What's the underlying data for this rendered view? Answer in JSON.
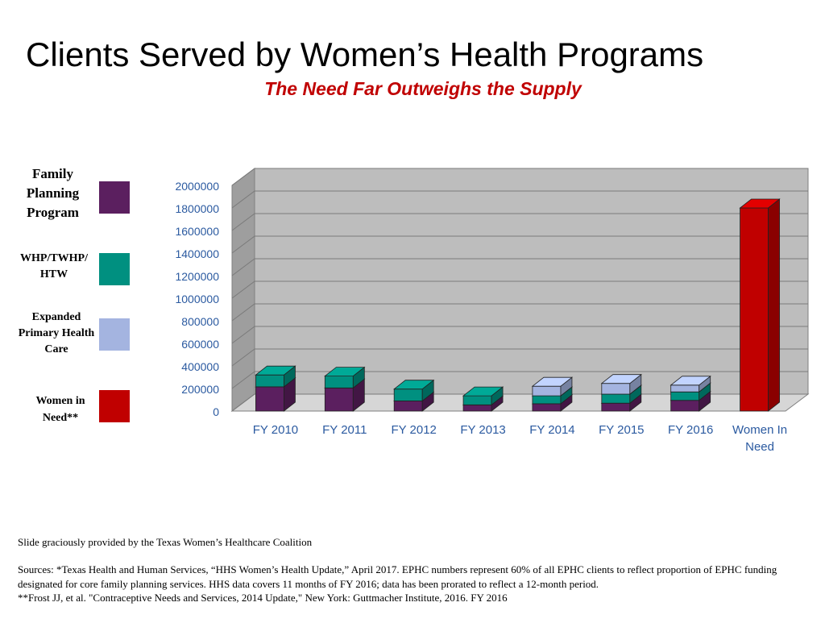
{
  "slide": {
    "title": "Clients Served by Women’s Health Programs",
    "subtitle": "The Need Far Outweighs the Supply"
  },
  "legend": [
    {
      "label": "Family Planning Program",
      "color": "#5b1f5f"
    },
    {
      "label": "WHP/TWHP/HTW",
      "color": "#009080"
    },
    {
      "label": "Expanded Primary Health Care",
      "color": "#a4b4e0"
    },
    {
      "label": "Women in Need**",
      "color": "#c00000"
    }
  ],
  "chart_data": {
    "type": "bar",
    "stacked": true,
    "title": "Clients Served by Women’s Health Programs",
    "subtitle": "The Need Far Outweighs the Supply",
    "categories": [
      "FY 2010",
      "FY 2011",
      "FY 2012",
      "FY 2013",
      "FY 2014",
      "FY 2015",
      "FY 2016",
      "Women In Need"
    ],
    "series": [
      {
        "name": "Family Planning Program",
        "color": "#5b1f5f",
        "values": [
          215000,
          205000,
          90000,
          55000,
          65000,
          70000,
          95000,
          0
        ]
      },
      {
        "name": "WHP/TWHP/HTW",
        "color": "#009080",
        "values": [
          105000,
          105000,
          105000,
          80000,
          70000,
          80000,
          75000,
          0
        ]
      },
      {
        "name": "Expanded Primary Health Care",
        "color": "#a4b4e0",
        "values": [
          0,
          0,
          0,
          0,
          85000,
          95000,
          60000,
          0
        ]
      },
      {
        "name": "Women in Need**",
        "color": "#c00000",
        "values": [
          0,
          0,
          0,
          0,
          0,
          0,
          0,
          1800000
        ]
      }
    ],
    "y_ticks": [
      "0",
      "200000",
      "400000",
      "600000",
      "800000",
      "1000000",
      "1200000",
      "1400000",
      "1600000",
      "1800000",
      "2000000"
    ],
    "ylim": [
      0,
      2000000
    ],
    "grid": true,
    "legend_position": "left"
  },
  "footer": {
    "credit": "Slide graciously provided by the Texas Women’s Healthcare Coalition",
    "sources_line1": "Sources: *Texas Health and Human Services, “HHS Women’s Health Update,” April 2017. EPHC numbers represent 60% of all EPHC clients to reflect proportion of EPHC funding designated for core family planning services. HHS data covers 11 months of FY 2016; data has been prorated to reflect a 12-month period.",
    "sources_line2": "**Frost JJ, et al. \"Contraceptive Needs and Services, 2014 Update,\"  New York: Guttmacher Institute, 2016. FY 2016"
  }
}
